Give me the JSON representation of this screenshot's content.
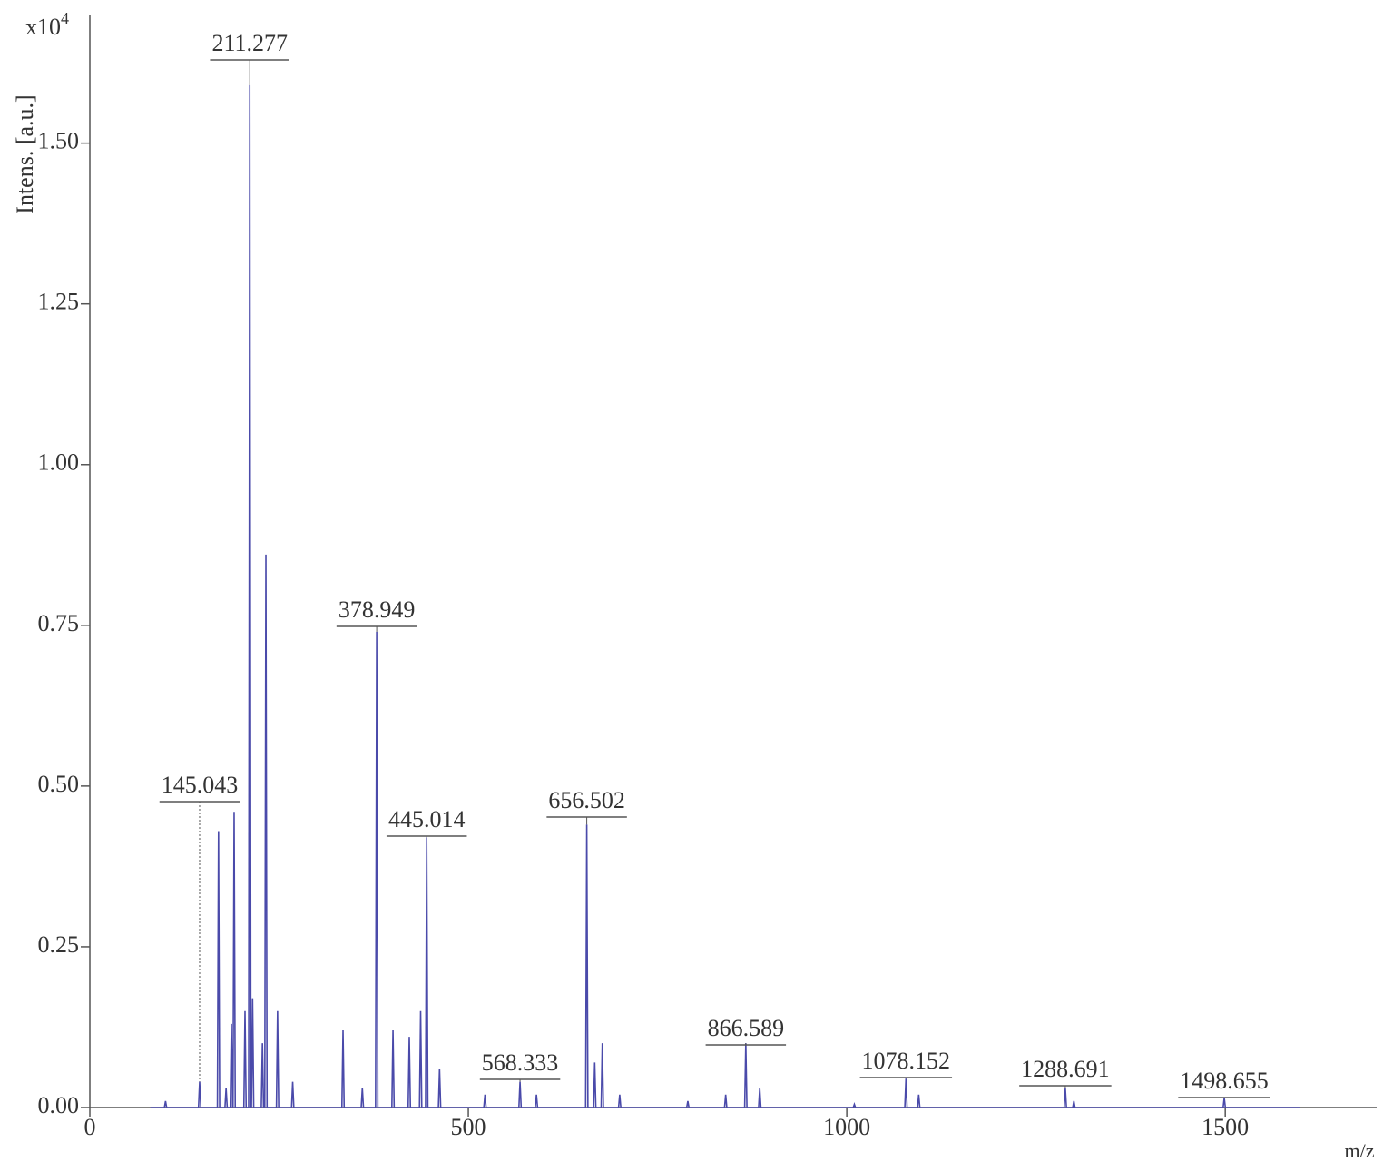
{
  "chart_data": {
    "type": "line",
    "y_label": "Intens. [a.u.]",
    "y_scale_label": "x10",
    "y_scale_exponent": "4",
    "x_label": "m/z",
    "xlim": [
      0,
      1700
    ],
    "ylim": [
      0,
      1.7
    ],
    "xticks": [
      0,
      500,
      1000,
      1500
    ],
    "yticks": [
      {
        "value": 0,
        "label": "0.00"
      },
      {
        "value": 0.25,
        "label": "0.25"
      },
      {
        "value": 0.5,
        "label": "0.50"
      },
      {
        "value": 0.75,
        "label": "0.75"
      },
      {
        "value": 1,
        "label": "1.00"
      },
      {
        "value": 1.25,
        "label": "1.25"
      },
      {
        "value": 1.5,
        "label": "1.50"
      }
    ],
    "grid": false,
    "series": [
      {
        "color": "#4a4aaa",
        "x": [
          80,
          98.5,
          100,
          101.5,
          143.543,
          145.043,
          146.543,
          168.5,
          170,
          171.5,
          178.5,
          180,
          181.5,
          185.5,
          187,
          188.5,
          189.1,
          190.6,
          192.1,
          203.5,
          205,
          206.5,
          209.777,
          211.277,
          212.777,
          213.5,
          215,
          216.5,
          226.5,
          228,
          229.5,
          231.1,
          232.6,
          234.1,
          246.5,
          248,
          249.5,
          266.5,
          268,
          269.5,
          333,
          334.5,
          336,
          358.5,
          360,
          361.5,
          377.449,
          378.949,
          380.449,
          399,
          400.5,
          402,
          420.5,
          422,
          423.5,
          435.5,
          437,
          438.5,
          443.514,
          445.014,
          446.514,
          460.5,
          462,
          463.5,
          520.5,
          522,
          523.5,
          566.833,
          568.333,
          569.833,
          588.5,
          590,
          591.5,
          655.002,
          656.502,
          658.002,
          665.5,
          667,
          668.5,
          675.5,
          677,
          678.5,
          698.5,
          700,
          701.5,
          788.5,
          790,
          791.5,
          838.5,
          840,
          841.5,
          865.089,
          866.589,
          868.089,
          883.5,
          885,
          886.5,
          1008.5,
          1010,
          1011.5,
          1076.652,
          1078.152,
          1079.652,
          1093.5,
          1095,
          1096.5,
          1287.191,
          1288.691,
          1290.191,
          1298.5,
          1300,
          1301.5,
          1497.155,
          1498.655,
          1500.155,
          1598
        ],
        "values": [
          0,
          0,
          0.01,
          0,
          0,
          0.04,
          0,
          0,
          0.43,
          0,
          0,
          0.03,
          0,
          0,
          0.13,
          0,
          0,
          0.46,
          0,
          0,
          0.15,
          0,
          0,
          1.59,
          0,
          0,
          0.17,
          0,
          0,
          0.1,
          0,
          0,
          0.86,
          0,
          0,
          0.15,
          0,
          0,
          0.04,
          0,
          0,
          0.12,
          0,
          0,
          0.03,
          0,
          0,
          0.74,
          0,
          0,
          0.12,
          0,
          0,
          0.11,
          0,
          0,
          0.15,
          0,
          0,
          0.42,
          0,
          0,
          0.06,
          0,
          0,
          0.02,
          0,
          0,
          0.04,
          0,
          0,
          0.02,
          0,
          0,
          0.44,
          0,
          0,
          0.07,
          0,
          0,
          0.1,
          0,
          0,
          0.02,
          0,
          0,
          0.01,
          0,
          0,
          0.02,
          0,
          0,
          0.1,
          0,
          0,
          0.03,
          0,
          0,
          0.005,
          0,
          0,
          0.045,
          0,
          0,
          0.02,
          0,
          0,
          0.03,
          0,
          0,
          0.01,
          0,
          0,
          0.015,
          0,
          0
        ]
      }
    ],
    "annotations": [
      {
        "x": 211.277,
        "y": 1.59,
        "label": "211.277"
      },
      {
        "x": 145.043,
        "y": 0.04,
        "label": "145.043"
      },
      {
        "x": 378.949,
        "y": 0.74,
        "label": "378.949"
      },
      {
        "x": 445.014,
        "y": 0.42,
        "label": "445.014"
      },
      {
        "x": 656.502,
        "y": 0.44,
        "label": "656.502"
      },
      {
        "x": 568.333,
        "y": 0.04,
        "label": "568.333"
      },
      {
        "x": 866.589,
        "y": 0.1,
        "label": "866.589"
      },
      {
        "x": 1078.152,
        "y": 0.045,
        "label": "1078.152"
      },
      {
        "x": 1288.691,
        "y": 0.03,
        "label": "1288.691"
      },
      {
        "x": 1498.655,
        "y": 0.015,
        "label": "1498.655"
      }
    ]
  }
}
